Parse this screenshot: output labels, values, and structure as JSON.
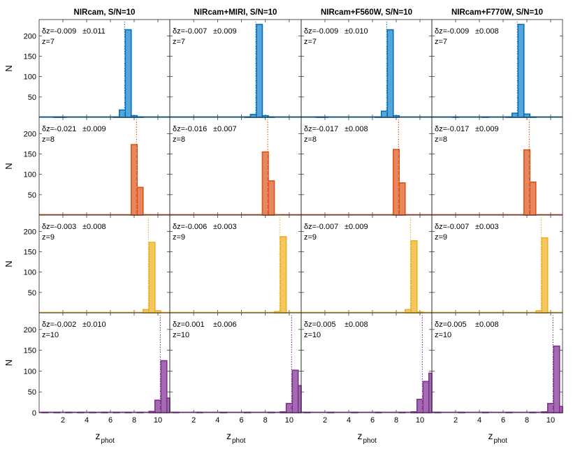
{
  "chart_data": {
    "type": "bar",
    "layout": "4x4 histogram grid",
    "column_titles": [
      "NIRcam, S/N=10",
      "NIRcam+MIRI, S/N=10",
      "NIRcam+F560W, S/N=10",
      "NIRcam+F770W, S/N=10"
    ],
    "xlabel_main": "z",
    "xlabel_sub": "phot",
    "ylabel": "N",
    "xlim": [
      0,
      11
    ],
    "xticks": [
      2,
      4,
      6,
      8,
      10
    ],
    "ylim": [
      0,
      240
    ],
    "yticks_top": [
      50,
      100,
      150,
      200
    ],
    "yticks_bottom": [
      0,
      50,
      100,
      150,
      200
    ],
    "bin_width": 0.5,
    "rows": [
      {
        "z": 7,
        "z_label": "z=7",
        "color": "#0072BD",
        "fill": "#56A4DA",
        "panels": [
          {
            "dz_label": "δz=-0.009",
            "err_label": "±0.011",
            "bins": [
              [
                1.5,
                1
              ],
              [
                2.0,
                1
              ],
              [
                6.5,
                1
              ],
              [
                7.0,
                18
              ],
              [
                7.5,
                215
              ],
              [
                8.0,
                4
              ],
              [
                8.5,
                1
              ]
            ]
          },
          {
            "dz_label": "δz=-0.007",
            "err_label": "±0.009",
            "bins": [
              [
                6.5,
                1
              ],
              [
                7.0,
                7
              ],
              [
                7.5,
                228
              ],
              [
                8.0,
                4
              ],
              [
                8.5,
                1
              ]
            ]
          },
          {
            "dz_label": "δz=-0.009",
            "err_label": "±0.010",
            "bins": [
              [
                1.5,
                1
              ],
              [
                2.0,
                1
              ],
              [
                6.5,
                1
              ],
              [
                7.0,
                15
              ],
              [
                7.5,
                215
              ],
              [
                8.0,
                4
              ]
            ]
          },
          {
            "dz_label": "δz=-0.009",
            "err_label": "±0.008",
            "bins": [
              [
                2.0,
                1
              ],
              [
                4.5,
                1
              ],
              [
                6.5,
                1
              ],
              [
                7.0,
                10
              ],
              [
                7.5,
                228
              ],
              [
                8.0,
                8
              ],
              [
                8.5,
                1
              ]
            ]
          }
        ]
      },
      {
        "z": 8,
        "z_label": "z=8",
        "color": "#D95319",
        "fill": "#E8875E",
        "panels": [
          {
            "dz_label": "δz=-0.021",
            "err_label": "±0.009",
            "bins": [
              [
                8.0,
                173
              ],
              [
                8.5,
                68
              ]
            ]
          },
          {
            "dz_label": "δz=-0.016",
            "err_label": "±0.007",
            "bins": [
              [
                8.0,
                155
              ],
              [
                8.5,
                84
              ]
            ]
          },
          {
            "dz_label": "δz=-0.017",
            "err_label": "±0.008",
            "bins": [
              [
                8.0,
                161
              ],
              [
                8.5,
                79
              ]
            ]
          },
          {
            "dz_label": "δz=-0.017",
            "err_label": "±0.009",
            "bins": [
              [
                8.0,
                160
              ],
              [
                8.5,
                81
              ]
            ]
          }
        ]
      },
      {
        "z": 9,
        "z_label": "z=9",
        "color": "#EDB120",
        "fill": "#F2C75E",
        "panels": [
          {
            "dz_label": "δz=-0.003",
            "err_label": "±0.008",
            "bins": [
              [
                9.0,
                8
              ],
              [
                9.5,
                173
              ],
              [
                10.0,
                5
              ]
            ]
          },
          {
            "dz_label": "δz=-0.006",
            "err_label": "±0.003",
            "bins": [
              [
                9.0,
                3
              ],
              [
                9.5,
                187
              ]
            ]
          },
          {
            "dz_label": "δz=-0.007",
            "err_label": "±0.009",
            "bins": [
              [
                9.0,
                8
              ],
              [
                9.5,
                177
              ],
              [
                10.0,
                2
              ]
            ]
          },
          {
            "dz_label": "δz=-0.007",
            "err_label": "±0.003",
            "bins": [
              [
                9.0,
                5
              ],
              [
                9.5,
                184
              ]
            ]
          }
        ]
      },
      {
        "z": 10,
        "z_label": "z=10",
        "color": "#7E2F8E",
        "fill": "#A56BB2",
        "panels": [
          {
            "dz_label": "δz=-0.002",
            "err_label": "±0.010",
            "bins": [
              [
                0.5,
                1
              ],
              [
                1.5,
                1
              ],
              [
                2.5,
                1
              ],
              [
                3.5,
                1
              ],
              [
                4.5,
                1
              ],
              [
                5.5,
                1
              ],
              [
                6.5,
                1
              ],
              [
                7.5,
                1
              ],
              [
                8.5,
                1
              ],
              [
                9.5,
                3
              ],
              [
                10.0,
                30
              ],
              [
                10.5,
                125
              ],
              [
                11.0,
                35
              ]
            ]
          },
          {
            "dz_label": "δz=0.001",
            "err_label": "±0.006",
            "bins": [
              [
                0.5,
                1
              ],
              [
                2.5,
                1
              ],
              [
                4.5,
                1
              ],
              [
                6.5,
                1
              ],
              [
                8.5,
                1
              ],
              [
                9.5,
                2
              ],
              [
                10.0,
                22
              ],
              [
                10.5,
                102
              ],
              [
                11.0,
                65
              ]
            ]
          },
          {
            "dz_label": "δz=0.005",
            "err_label": "±0.008",
            "bins": [
              [
                0.5,
                1
              ],
              [
                2.5,
                1
              ],
              [
                4.5,
                1
              ],
              [
                6.5,
                1
              ],
              [
                8.5,
                1
              ],
              [
                9.5,
                2
              ],
              [
                10.0,
                32
              ],
              [
                10.5,
                75
              ],
              [
                11.0,
                95
              ]
            ]
          },
          {
            "dz_label": "δz=0.005",
            "err_label": "±0.008",
            "bins": [
              [
                0.5,
                1
              ],
              [
                2.5,
                1
              ],
              [
                4.5,
                1
              ],
              [
                6.5,
                1
              ],
              [
                8.5,
                1
              ],
              [
                9.5,
                2
              ],
              [
                10.0,
                22
              ],
              [
                10.5,
                160
              ],
              [
                11.0,
                15
              ]
            ]
          }
        ]
      }
    ]
  }
}
